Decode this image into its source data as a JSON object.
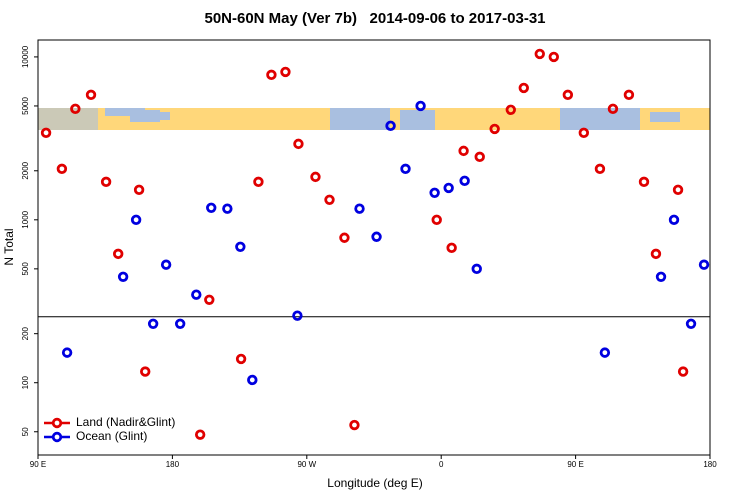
{
  "chart_data": {
    "type": "scatter",
    "title": "50N-60N May (Ver 7b)   2014-09-06 to 2017-03-31",
    "x_label": "Longitude (deg E)",
    "y_label": "N Total",
    "log_y": true,
    "legend": "bottom-left",
    "reference_line": 254,
    "xlim": [
      90,
      540
    ],
    "xticks": [
      {
        "value": 90,
        "label": "90 E"
      },
      180,
      {
        "value": 270,
        "label": "90 W"
      },
      {
        "value": 360,
        "label": "0"
      },
      {
        "value": 450,
        "label": "90 E"
      },
      {
        "value": 540,
        "label": "180"
      }
    ],
    "ylim": [
      36,
      12700
    ],
    "yticks": [
      50,
      100,
      200,
      500,
      1000,
      2000,
      5000,
      10000
    ],
    "series": [
      {
        "name": "Land (Nadir&Glint)",
        "color": "#e00000",
        "x": [
          95.4,
          106,
          115,
          125.5,
          135.6,
          143.7,
          157.7,
          161.8,
          198.6,
          204.7,
          226,
          237.6,
          246.3,
          255.7,
          264.4,
          275.8,
          285.2,
          295.2,
          301.9,
          357,
          367,
          375,
          385.8,
          395.8,
          406.6,
          415.3,
          426,
          435.4,
          444.8,
          455.5,
          466.3,
          475,
          485.7,
          495.8,
          503.8,
          518.6,
          522
        ],
        "values": [
          3420,
          2055,
          4800,
          5850,
          1710,
          618,
          1528,
          117,
          48,
          323,
          140,
          1710,
          7760,
          8090,
          2925,
          1835,
          1327,
          776,
          55,
          1000,
          673,
          2650,
          2435,
          3615,
          4735,
          6450,
          10430,
          10000,
          5850,
          3420,
          2055,
          4800,
          5850,
          1710,
          618,
          1528,
          117
        ]
      },
      {
        "name": "Ocean (Glint)",
        "color": "#0000e0",
        "x": [
          109.5,
          147,
          155.7,
          167.1,
          175.8,
          185.2,
          196,
          206,
          216.8,
          225.5,
          233.5,
          263.7,
          305.3,
          316.7,
          326.1,
          336.1,
          346.2,
          355.6,
          365,
          375.7,
          383.8,
          469.6,
          507.2,
          515.9,
          527.3,
          536
        ],
        "values": [
          153,
          447,
          1000,
          230,
          530,
          230,
          347,
          1185,
          1170,
          683,
          104,
          258,
          1170,
          787,
          3775,
          2055,
          5000,
          1465,
          1570,
          1735,
          500,
          153,
          447,
          1000,
          230,
          530
        ]
      }
    ]
  }
}
